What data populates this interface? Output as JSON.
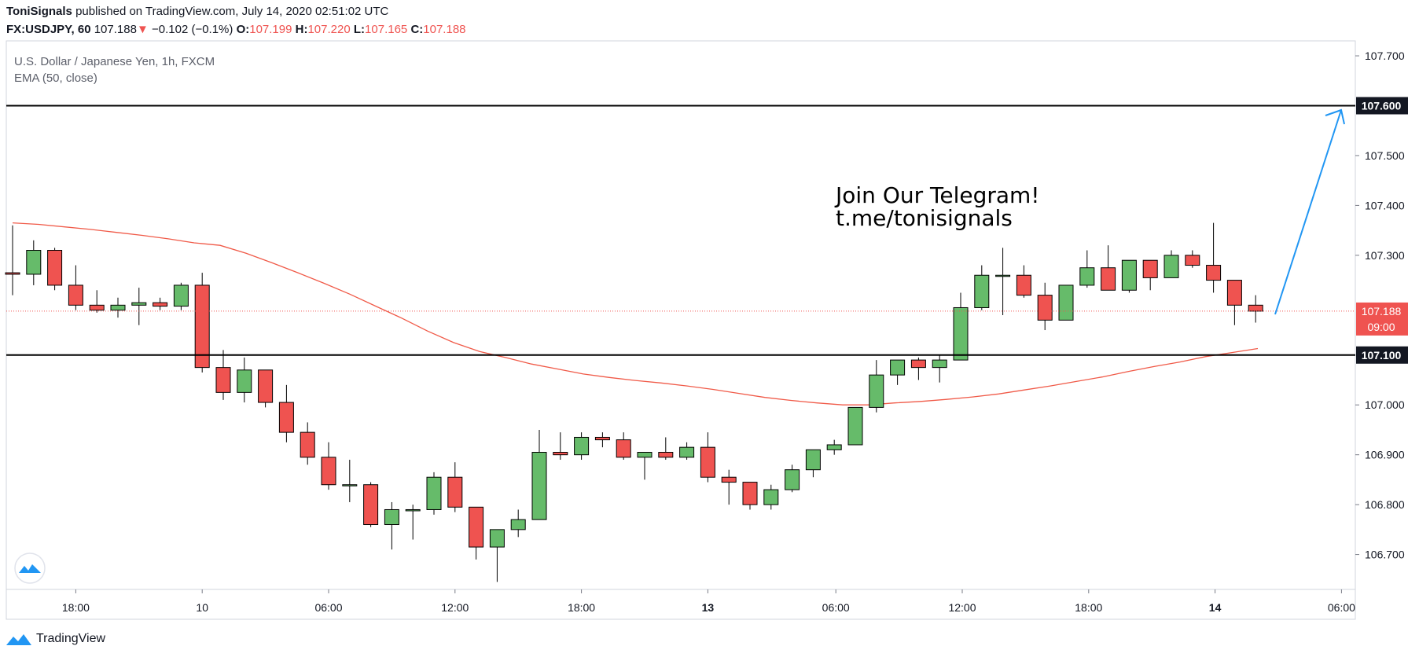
{
  "header": {
    "author": "ToniSignals",
    "published_text": "published on TradingView.com, July 14, 2020 02:51:02 UTC",
    "symbol": "FX:USDJPY, 60",
    "last": "107.188",
    "arrow": "▼",
    "change": "−0.102 (−0.1%)",
    "o_label": "O:",
    "o_value": "107.199",
    "h_label": "H:",
    "h_value": "107.220",
    "l_label": "L:",
    "l_value": "107.165",
    "c_label": "C:",
    "c_value": "107.188"
  },
  "legend": {
    "title": "U.S. Dollar / Japanese Yen, 1h, FXCM",
    "indicator": "EMA (50, close)"
  },
  "annotation": {
    "line1": "Join Our Telegram!",
    "line2": "t.me/tonisignals"
  },
  "footer": {
    "brand": "TradingView"
  },
  "colors": {
    "up": "#66bb6a",
    "down": "#ef5350",
    "wick": "#000000",
    "ema": "#f05a48",
    "level": "#000000",
    "arrow": "#2196f3",
    "current": "#ef5350",
    "grid_border": "#d1d4dc"
  },
  "chart_data": {
    "type": "candlestick",
    "ylim": [
      106.63,
      107.73
    ],
    "y_ticks": [
      "107.700",
      "107.500",
      "107.400",
      "107.300",
      "107.000",
      "106.900",
      "106.800",
      "106.700"
    ],
    "x_ticks": [
      {
        "label": "18:00",
        "bar": 3
      },
      {
        "label": "10",
        "bar": 9,
        "bold": false
      },
      {
        "label": "06:00",
        "bar": 15
      },
      {
        "label": "12:00",
        "bar": 21
      },
      {
        "label": "18:00",
        "bar": 27
      },
      {
        "label": "13",
        "bar": 33,
        "bold": true
      },
      {
        "label": "06:00",
        "bar": 39
      },
      {
        "label": "12:00",
        "bar": 45
      },
      {
        "label": "18:00",
        "bar": 51
      },
      {
        "label": "14",
        "bar": 57,
        "bold": true
      },
      {
        "label": "06:00",
        "bar": 63
      }
    ],
    "horizontal_levels": [
      {
        "value": 107.6,
        "label": "107.600"
      },
      {
        "value": 107.1,
        "label": "107.100"
      }
    ],
    "current_price": {
      "value": 107.188,
      "label": "107.188",
      "countdown": "09:00"
    },
    "candles": [
      [
        107.265,
        107.36,
        107.22,
        107.262
      ],
      [
        107.262,
        107.33,
        107.24,
        107.31
      ],
      [
        107.31,
        107.315,
        107.23,
        107.24
      ],
      [
        107.24,
        107.28,
        107.19,
        107.2
      ],
      [
        107.2,
        107.23,
        107.185,
        107.19
      ],
      [
        107.19,
        107.215,
        107.175,
        107.2
      ],
      [
        107.2,
        107.235,
        107.16,
        107.205
      ],
      [
        107.205,
        107.215,
        107.19,
        107.198
      ],
      [
        107.198,
        107.245,
        107.19,
        107.24
      ],
      [
        107.24,
        107.265,
        107.065,
        107.075
      ],
      [
        107.075,
        107.11,
        107.01,
        107.025
      ],
      [
        107.025,
        107.095,
        107.005,
        107.07
      ],
      [
        107.07,
        107.07,
        106.995,
        107.005
      ],
      [
        107.005,
        107.04,
        106.925,
        106.945
      ],
      [
        106.945,
        106.965,
        106.88,
        106.895
      ],
      [
        106.895,
        106.925,
        106.83,
        106.84
      ],
      [
        106.84,
        106.89,
        106.805,
        106.84
      ],
      [
        106.84,
        106.845,
        106.755,
        106.76
      ],
      [
        106.76,
        106.805,
        106.71,
        106.79
      ],
      [
        106.79,
        106.8,
        106.73,
        106.79
      ],
      [
        106.79,
        106.865,
        106.78,
        106.855
      ],
      [
        106.855,
        106.885,
        106.785,
        106.795
      ],
      [
        106.795,
        106.795,
        106.69,
        106.715
      ],
      [
        106.715,
        106.75,
        106.645,
        106.75
      ],
      [
        106.75,
        106.79,
        106.735,
        106.77
      ],
      [
        106.77,
        106.95,
        106.77,
        106.905
      ],
      [
        106.905,
        106.945,
        106.89,
        106.9
      ],
      [
        106.9,
        106.945,
        106.89,
        106.935
      ],
      [
        106.935,
        106.945,
        106.915,
        106.93
      ],
      [
        106.93,
        106.945,
        106.89,
        106.895
      ],
      [
        106.895,
        106.905,
        106.85,
        106.905
      ],
      [
        106.905,
        106.935,
        106.89,
        106.895
      ],
      [
        106.895,
        106.925,
        106.89,
        106.915
      ],
      [
        106.915,
        106.945,
        106.845,
        106.855
      ],
      [
        106.855,
        106.87,
        106.8,
        106.845
      ],
      [
        106.845,
        106.845,
        106.79,
        106.8
      ],
      [
        106.8,
        106.84,
        106.79,
        106.83
      ],
      [
        106.83,
        106.88,
        106.825,
        106.87
      ],
      [
        106.87,
        106.91,
        106.855,
        106.91
      ],
      [
        106.91,
        106.93,
        106.9,
        106.92
      ],
      [
        106.92,
        106.995,
        106.925,
        106.995
      ],
      [
        106.995,
        107.09,
        106.985,
        107.06
      ],
      [
        107.06,
        107.09,
        107.04,
        107.09
      ],
      [
        107.09,
        107.095,
        107.05,
        107.075
      ],
      [
        107.075,
        107.1,
        107.045,
        107.09
      ],
      [
        107.09,
        107.225,
        107.09,
        107.195
      ],
      [
        107.195,
        107.28,
        107.19,
        107.26
      ],
      [
        107.26,
        107.315,
        107.18,
        107.26
      ],
      [
        107.26,
        107.28,
        107.215,
        107.22
      ],
      [
        107.22,
        107.245,
        107.15,
        107.17
      ],
      [
        107.17,
        107.24,
        107.17,
        107.24
      ],
      [
        107.24,
        107.31,
        107.235,
        107.275
      ],
      [
        107.275,
        107.32,
        107.23,
        107.23
      ],
      [
        107.23,
        107.29,
        107.225,
        107.29
      ],
      [
        107.29,
        107.29,
        107.23,
        107.255
      ],
      [
        107.255,
        107.31,
        107.255,
        107.3
      ],
      [
        107.3,
        107.31,
        107.275,
        107.28
      ],
      [
        107.28,
        107.365,
        107.225,
        107.25
      ],
      [
        107.25,
        107.25,
        107.16,
        107.2
      ],
      [
        107.2,
        107.22,
        107.165,
        107.188
      ]
    ],
    "ema": [
      107.365,
      107.362,
      107.357,
      107.352,
      107.346,
      107.34,
      107.333,
      107.325,
      107.32,
      107.304,
      107.285,
      107.265,
      107.244,
      107.222,
      107.198,
      107.174,
      107.148,
      107.125,
      107.107,
      107.095,
      107.082,
      107.072,
      107.062,
      107.055,
      107.049,
      107.044,
      107.038,
      107.031,
      107.023,
      107.015,
      107.009,
      107.004,
      107.0,
      107.0,
      107.004,
      107.007,
      107.011,
      107.016,
      107.022,
      107.03,
      107.038,
      107.047,
      107.056,
      107.067,
      107.077,
      107.086,
      107.097,
      107.105,
      107.113
    ]
  }
}
